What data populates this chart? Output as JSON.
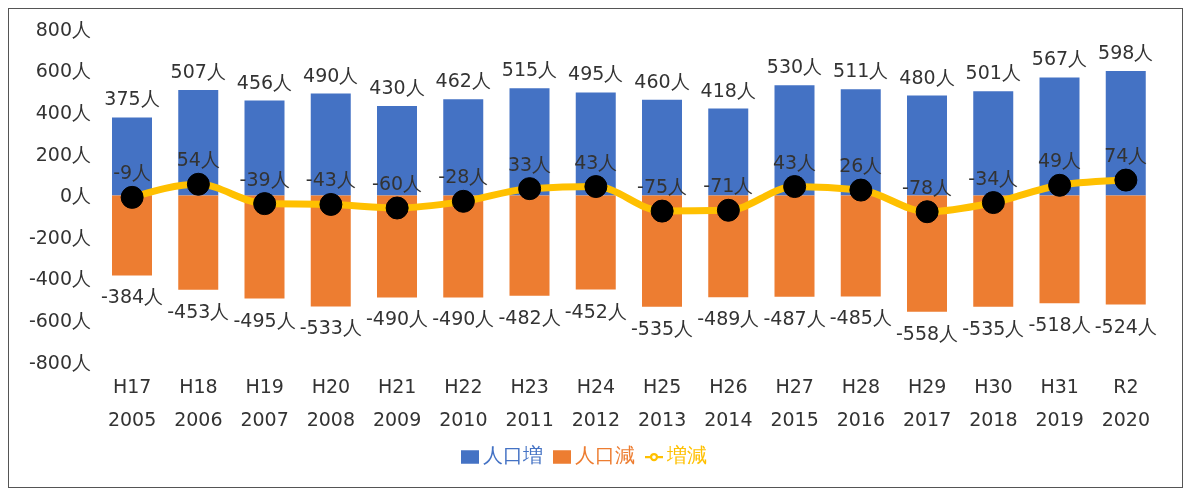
{
  "chart_data": {
    "type": "bar",
    "stacked": true,
    "categories": [
      "H17\n2005",
      "H18\n2006",
      "H19\n2007",
      "H20\n2008",
      "H21\n2009",
      "H22\n2010",
      "H23\n2011",
      "H24\n2012",
      "H25\n2013",
      "H26\n2014",
      "H27\n2015",
      "H28\n2016",
      "H29\n2017",
      "H30\n2018",
      "H31\n2019",
      "R2\n2020"
    ],
    "series": [
      {
        "name": "人口増",
        "color": "#4472c4",
        "values": [
          375,
          507,
          456,
          490,
          430,
          462,
          515,
          495,
          460,
          418,
          530,
          511,
          480,
          501,
          567,
          598
        ],
        "value_labels": [
          "375人",
          "507人",
          "456人",
          "490人",
          "430人",
          "462人",
          "515人",
          "495人",
          "460人",
          "418人",
          "530人",
          "511人",
          "480人",
          "501人",
          "567人",
          "598人"
        ]
      },
      {
        "name": "人口減",
        "color": "#ed7d31",
        "values": [
          -384,
          -453,
          -495,
          -533,
          -490,
          -490,
          -482,
          -452,
          -535,
          -489,
          -487,
          -485,
          -558,
          -535,
          -518,
          -524
        ],
        "value_labels": [
          "-384人",
          "-453人",
          "-495人",
          "-533人",
          "-490人",
          "-490人",
          "-482人",
          "-452人",
          "-535人",
          "-489人",
          "-487人",
          "-485人",
          "-558人",
          "-535人",
          "-518人",
          "-524人"
        ]
      },
      {
        "name": "増減",
        "type": "line",
        "color": "#ffc000",
        "marker": "circle",
        "values": [
          -9,
          54,
          -39,
          -43,
          -60,
          -28,
          33,
          43,
          -75,
          -71,
          43,
          26,
          -78,
          -34,
          49,
          74
        ],
        "value_labels": [
          "-9人",
          "54人",
          "-39人",
          "-43人",
          "-60人",
          "-28人",
          "33人",
          "43人",
          "-75人",
          "-71人",
          "43人",
          "26人",
          "-78人",
          "-34人",
          "49人",
          "74人"
        ]
      }
    ],
    "ylim": [
      -800,
      800
    ],
    "yticks": [
      {
        "value": -800,
        "label": "-800人"
      },
      {
        "value": -600,
        "label": "-600人"
      },
      {
        "value": -400,
        "label": "-400人"
      },
      {
        "value": -200,
        "label": "-200人"
      },
      {
        "value": 0,
        "label": "0人"
      },
      {
        "value": 200,
        "label": "200人"
      },
      {
        "value": 400,
        "label": "400人"
      },
      {
        "value": 600,
        "label": "600人"
      },
      {
        "value": 800,
        "label": "800人"
      }
    ],
    "grid": false,
    "legend": "bottom"
  }
}
